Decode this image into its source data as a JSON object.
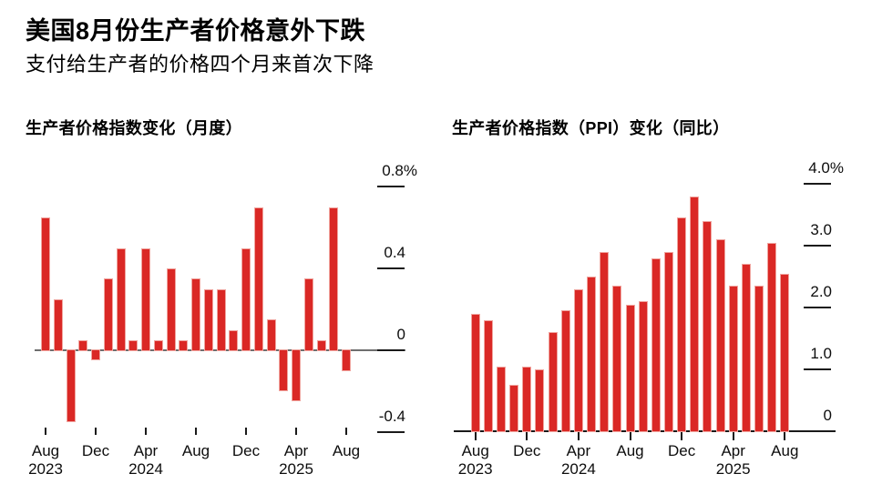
{
  "header": {
    "title": "美国8月份生产者价格意外下跌",
    "subtitle": "支付给生产者的价格四个月来首次下降"
  },
  "colors": {
    "bar": "#da2825",
    "bar_edge": "#f0a49e",
    "zero_line_left": "#6e6e6e",
    "axis": "#1a1a1a",
    "text": "#000000",
    "background": "#ffffff"
  },
  "chart_data": [
    {
      "type": "bar",
      "title": "生产者价格指数变化（月度）",
      "unit": "%",
      "x": [
        "Aug 2023",
        "Sep 2023",
        "Oct 2023",
        "Nov 2023",
        "Dec 2023",
        "Jan 2024",
        "Feb 2024",
        "Mar 2024",
        "Apr 2024",
        "May 2024",
        "Jun 2024",
        "Jul 2024",
        "Aug 2024",
        "Sep 2024",
        "Oct 2024",
        "Nov 2024",
        "Dec 2024",
        "Jan 2025",
        "Feb 2025",
        "Mar 2025",
        "Apr 2025",
        "May 2025",
        "Jun 2025",
        "Jul 2025",
        "Aug 2025"
      ],
      "values": [
        0.65,
        0.25,
        -0.35,
        0.05,
        -0.05,
        0.35,
        0.5,
        0.05,
        0.5,
        0.05,
        0.4,
        0.05,
        0.35,
        0.3,
        0.3,
        0.1,
        0.5,
        0.7,
        0.15,
        -0.2,
        -0.25,
        0.35,
        0.05,
        0.7,
        -0.1
      ],
      "ylim": [
        -0.55,
        0.95
      ],
      "grid": false,
      "legend": "none",
      "y_ticks": [
        {
          "value": 0.8,
          "label": "0.8%"
        },
        {
          "value": 0.4,
          "label": "0.4"
        },
        {
          "value": 0,
          "label": "0"
        },
        {
          "value": -0.4,
          "label": "-0.4"
        }
      ],
      "x_ticks": [
        {
          "index": 0,
          "line1": "Aug",
          "line2": "2023"
        },
        {
          "index": 4,
          "line1": "Dec",
          "line2": ""
        },
        {
          "index": 8,
          "line1": "Apr",
          "line2": "2024"
        },
        {
          "index": 12,
          "line1": "Aug",
          "line2": ""
        },
        {
          "index": 16,
          "line1": "Dec",
          "line2": ""
        },
        {
          "index": 20,
          "line1": "Apr",
          "line2": "2025"
        },
        {
          "index": 24,
          "line1": "Aug",
          "line2": ""
        }
      ]
    },
    {
      "type": "bar",
      "title": "生产者价格指数（PPI）变化（同比）",
      "unit": "%",
      "x": [
        "Aug 2023",
        "Sep 2023",
        "Oct 2023",
        "Nov 2023",
        "Dec 2023",
        "Jan 2024",
        "Feb 2024",
        "Mar 2024",
        "Apr 2024",
        "May 2024",
        "Jun 2024",
        "Jul 2024",
        "Aug 2024",
        "Sep 2024",
        "Oct 2024",
        "Nov 2024",
        "Dec 2024",
        "Jan 2025",
        "Feb 2025",
        "Mar 2025",
        "Apr 2025",
        "May 2025",
        "Jun 2025",
        "Jul 2025",
        "Aug 2025"
      ],
      "values": [
        1.9,
        1.8,
        1.05,
        0.75,
        1.05,
        1.0,
        1.6,
        1.95,
        2.3,
        2.5,
        2.9,
        2.35,
        2.05,
        2.1,
        2.8,
        2.9,
        3.45,
        3.8,
        3.4,
        3.1,
        2.35,
        2.7,
        2.35,
        3.05,
        2.55
      ],
      "ylim": [
        0,
        4.3
      ],
      "grid": false,
      "legend": "none",
      "y_ticks": [
        {
          "value": 4.0,
          "label": "4.0%"
        },
        {
          "value": 3.0,
          "label": "3.0"
        },
        {
          "value": 2.0,
          "label": "2.0"
        },
        {
          "value": 1.0,
          "label": "1.0"
        },
        {
          "value": 0,
          "label": "0"
        }
      ],
      "x_ticks": [
        {
          "index": 0,
          "line1": "Aug",
          "line2": "2023"
        },
        {
          "index": 4,
          "line1": "Dec",
          "line2": ""
        },
        {
          "index": 8,
          "line1": "Apr",
          "line2": "2024"
        },
        {
          "index": 12,
          "line1": "Aug",
          "line2": ""
        },
        {
          "index": 16,
          "line1": "Dec",
          "line2": ""
        },
        {
          "index": 20,
          "line1": "Apr",
          "line2": "2025"
        },
        {
          "index": 24,
          "line1": "Aug",
          "line2": ""
        }
      ]
    }
  ]
}
